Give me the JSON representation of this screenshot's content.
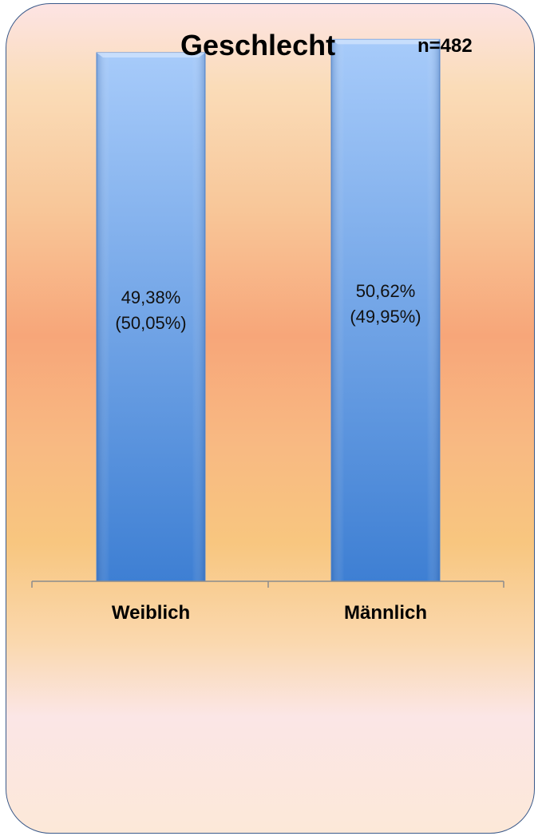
{
  "chart_data": {
    "type": "bar",
    "title": "Geschlecht",
    "subtitle": "n=482",
    "categories": [
      "Weiblich",
      "Männlich"
    ],
    "values": [
      49.38,
      50.62
    ],
    "labels": [
      "49,38%\n(50,05%)",
      "50,62%\n(49,95%)"
    ],
    "ylim": [
      0,
      54.3
    ],
    "grid": false,
    "legend": "none",
    "bar_color_top": "#a7cbfa",
    "bar_color_bottom": "#3e7fd3"
  }
}
